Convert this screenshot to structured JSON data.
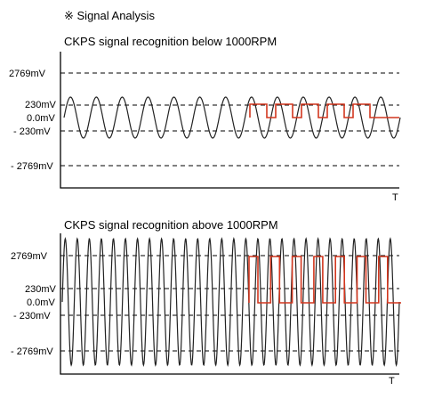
{
  "header": {
    "title": "※ Signal Analysis"
  },
  "charts": [
    {
      "subtitle": "CKPS signal recognition below 1000RPM",
      "y_labels": [
        "2769mV",
        "230mV",
        "0.0mV",
        "- 230mV",
        "- 2769mV"
      ],
      "x_label": "T",
      "sine_amplitude_mV": 600,
      "sine_cycles": 13,
      "pulses": 5
    },
    {
      "subtitle": "CKPS signal recognition above 1000RPM",
      "y_labels": [
        "2769mV",
        "230mV",
        "0.0mV",
        "- 230mV",
        "- 2769mV"
      ],
      "x_label": "T",
      "sine_amplitude_mV": 3000,
      "sine_cycles": 28,
      "pulses": 7
    }
  ],
  "colors": {
    "sine": "#222222",
    "recognized_signal": "#d2371f"
  }
}
